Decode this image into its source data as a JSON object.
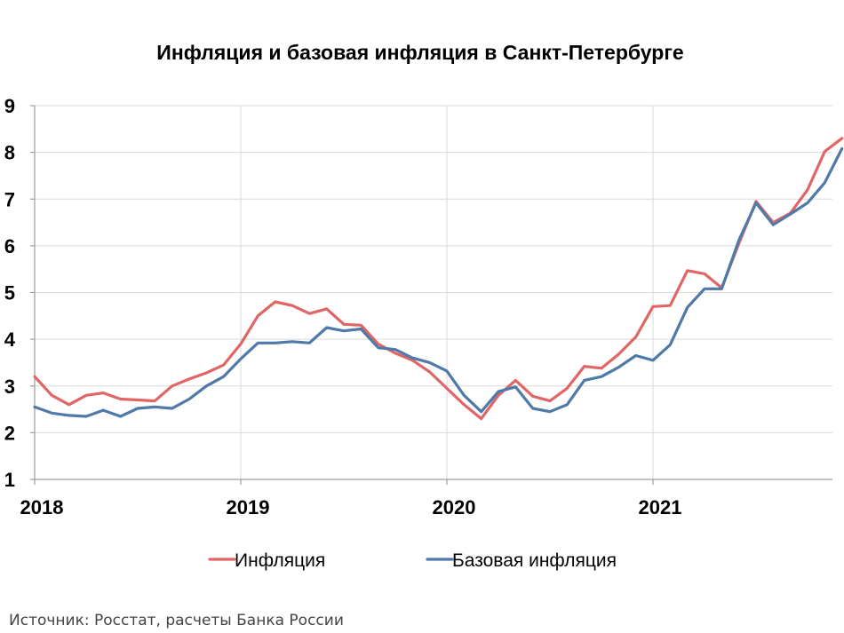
{
  "chart_data": {
    "type": "line",
    "title": "Инфляция и базовая инфляция в Санкт-Петербурге",
    "ylim": [
      1,
      9
    ],
    "yticks": [
      1,
      2,
      3,
      4,
      5,
      6,
      7,
      8,
      9
    ],
    "x_start": "2018-01",
    "year_labels": [
      "2018",
      "2019",
      "2020",
      "2021"
    ],
    "grid": true,
    "legend_position": "bottom",
    "series": [
      {
        "name": "Инфляция",
        "color": "#e06666",
        "values": [
          3.2,
          2.8,
          2.6,
          2.8,
          2.85,
          2.72,
          2.7,
          2.68,
          3.0,
          3.15,
          3.28,
          3.45,
          3.9,
          4.5,
          4.8,
          4.72,
          4.55,
          4.65,
          4.32,
          4.3,
          3.9,
          3.7,
          3.55,
          3.3,
          2.95,
          2.6,
          2.3,
          2.8,
          3.12,
          2.78,
          2.68,
          2.95,
          3.42,
          3.38,
          3.68,
          4.05,
          4.7,
          4.72,
          5.47,
          5.4,
          5.1,
          6.05,
          6.95,
          6.5,
          6.7,
          7.2,
          8.02,
          8.3
        ]
      },
      {
        "name": "Базовая инфляция",
        "color": "#4f79a8",
        "values": [
          2.55,
          2.42,
          2.37,
          2.35,
          2.48,
          2.35,
          2.52,
          2.55,
          2.52,
          2.72,
          3.0,
          3.2,
          3.58,
          3.92,
          3.92,
          3.95,
          3.92,
          4.25,
          4.18,
          4.22,
          3.82,
          3.78,
          3.6,
          3.5,
          3.32,
          2.8,
          2.45,
          2.88,
          2.98,
          2.52,
          2.45,
          2.6,
          3.12,
          3.2,
          3.4,
          3.65,
          3.55,
          3.88,
          4.68,
          5.08,
          5.08,
          6.12,
          6.92,
          6.45,
          6.68,
          6.92,
          7.35,
          8.08
        ]
      }
    ]
  },
  "source": "Источник: Росстат, расчеты Банка России"
}
